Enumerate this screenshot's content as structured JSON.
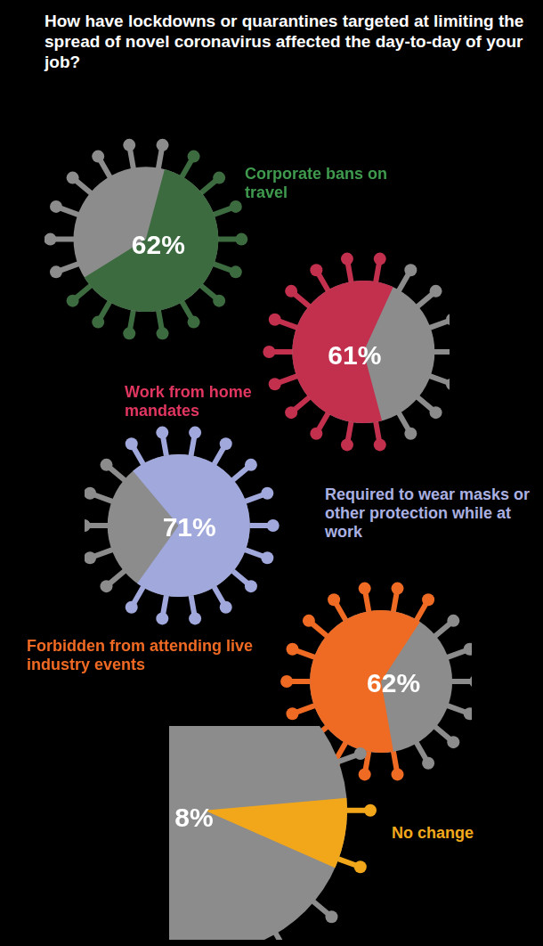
{
  "title": "How have lockdowns or quarantines targeted at limiting the spread of novel coronavirus affected the day-to-day of your job?",
  "chart_data": [
    {
      "type": "pie",
      "categories": [
        "Corporate bans on travel"
      ],
      "values": [
        62
      ],
      "value_labels": [
        "62%"
      ],
      "color": "#3d6b40",
      "data_labels": true
    },
    {
      "type": "pie",
      "categories": [
        "Work from home mandates"
      ],
      "values": [
        61
      ],
      "value_labels": [
        "61%"
      ],
      "color": "#c2304e",
      "data_labels": true
    },
    {
      "type": "pie",
      "categories": [
        "Required to wear masks or other protection while at work"
      ],
      "values": [
        71
      ],
      "value_labels": [
        "71%"
      ],
      "color": "#a0a8dc",
      "data_labels": true
    },
    {
      "type": "pie",
      "categories": [
        "Forbidden from attending live industry events"
      ],
      "values": [
        62
      ],
      "value_labels": [
        "62%"
      ],
      "color": "#ef6a22",
      "data_labels": true
    },
    {
      "type": "pie",
      "categories": [
        "No change"
      ],
      "values": [
        8
      ],
      "value_labels": [
        "8%"
      ],
      "color": "#f2a71b",
      "data_labels": true
    }
  ]
}
